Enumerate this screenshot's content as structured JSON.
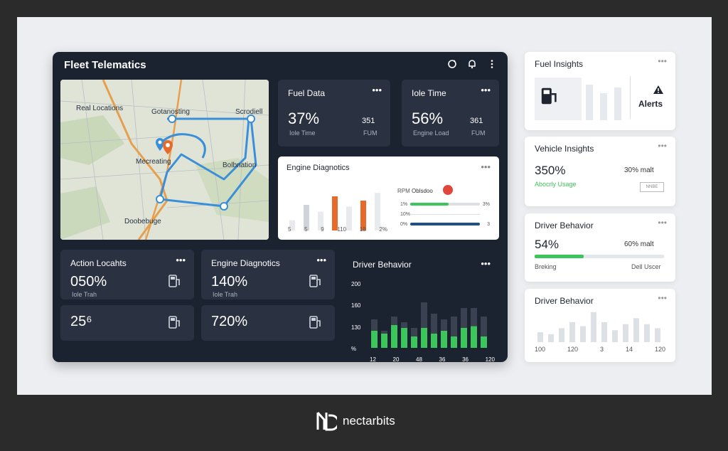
{
  "dashboard": {
    "title": "Fleet Telematics",
    "icons": [
      "refresh-icon",
      "bell-icon",
      "more-vertical-icon"
    ]
  },
  "map": {
    "labels": [
      "Real Locations",
      "Gotanosting",
      "Scrodiell",
      "Mecreating",
      "Bolbnation",
      "Doobebuge"
    ]
  },
  "fuel_data": {
    "title": "Fuel Data",
    "menu": "•••",
    "value": "37%",
    "sub": "Iole Time",
    "num": "351",
    "unit": "FUM"
  },
  "idle_time": {
    "title": "Iole Time",
    "menu": "•••",
    "value": "56%",
    "sub": "Engine Load",
    "num": "361",
    "unit": "FUM"
  },
  "engine_diag": {
    "title": "Engine Diagnotics",
    "menu": "•••",
    "x_ticks": [
      "5",
      "5",
      "9",
      "110",
      "18",
      "2%"
    ],
    "bars": [
      12,
      30,
      22,
      40,
      28,
      35,
      44
    ],
    "rpm_label": "RPM",
    "rpm_title": "Oblsdoo",
    "rows": [
      {
        "left": "1%",
        "right": "3%",
        "fill": 0.55,
        "color": "#3bc55a"
      },
      {
        "left": "10%",
        "right": "",
        "fill": 0,
        "color": "#cfd3da"
      },
      {
        "left": "0%",
        "right": "3",
        "fill": 1.0,
        "color": "#1f4e8c"
      }
    ]
  },
  "action_locations": {
    "title": "Action Locahts",
    "menu": "•••",
    "value": "050%",
    "sub": "Iole Trah"
  },
  "engine_diag2": {
    "title": "Engine Diagnotics",
    "menu": "•••",
    "value": "140%",
    "sub": "Iole Trah"
  },
  "mini1": {
    "value": "25⁶"
  },
  "mini2": {
    "value": "720%"
  },
  "driver_behavior_chart": {
    "title": "Driver Behavior",
    "menu": "•••",
    "y_ticks": [
      "200",
      "160",
      "130",
      "%"
    ],
    "x_ticks": [
      "12",
      "20",
      "48",
      "36",
      "36",
      "120"
    ],
    "bars_green": [
      30,
      25,
      40,
      35,
      20,
      35,
      25,
      30,
      20,
      35,
      38,
      20
    ],
    "bars_gray": [
      50,
      30,
      55,
      45,
      35,
      80,
      60,
      50,
      55,
      70,
      70,
      55
    ]
  },
  "side_fuel": {
    "title": "Fuel Insights",
    "menu": "•••",
    "alert_label": "Alerts"
  },
  "side_vehicle": {
    "title": "Vehicle Insights",
    "menu": "•••",
    "value": "350%",
    "right_text": "30% malt",
    "green_label": "Abocrly Usage",
    "button": "NNBE"
  },
  "side_driver1": {
    "title": "Driver Behavior",
    "menu": "•••",
    "value": "54%",
    "right_text": "60% malt",
    "left_sub": "Breking",
    "right_sub": "Dell Uscer",
    "progress": 0.38
  },
  "side_driver2": {
    "title": "Driver Behavior",
    "menu": "•••",
    "x_ticks": [
      "100",
      "120",
      "3",
      "14",
      "120"
    ],
    "bars": [
      10,
      8,
      14,
      20,
      16,
      30,
      20,
      12,
      18,
      24,
      18,
      14
    ]
  },
  "brand": {
    "name": "nectarbits"
  }
}
